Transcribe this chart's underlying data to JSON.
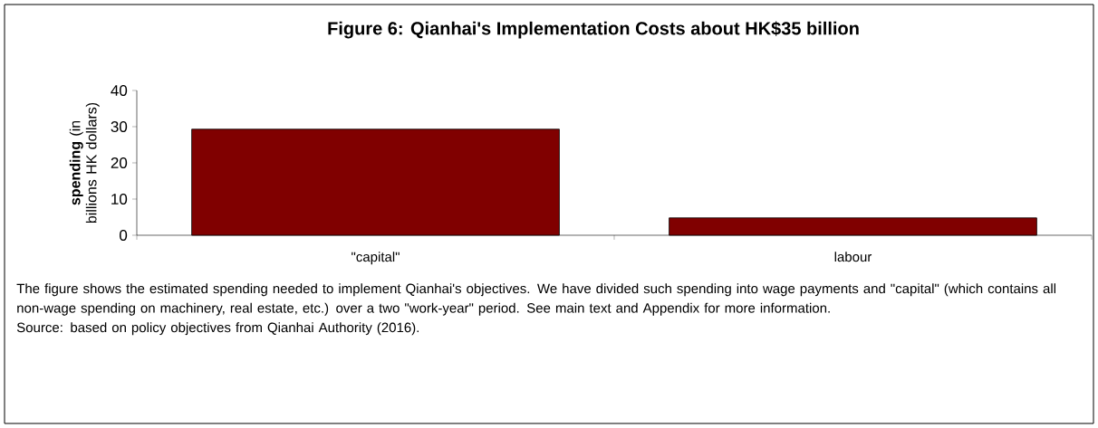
{
  "chart_data": {
    "type": "bar",
    "title": "Figure 6: Qianhai's Implementation Costs about HK$35 billion",
    "ylabel": "**spending** (in billions HK dollars)",
    "categories": [
      "\"capital\"",
      "labour"
    ],
    "values": [
      29.3,
      4.8
    ],
    "color": "#800000",
    "ylim": [
      0,
      40
    ],
    "yticks": [
      0,
      10,
      20,
      30,
      40
    ],
    "annotations": [
      "The figure shows the estimated spending needed to implement Qianhai's objectives. We have divided such spending into wage payments and \"capital\" (which contains all non-wage spending on machinery, real estate, etc.) over a two \"work-year\" period. See main text and Appendix for more information.",
      "Source: based on policy objectives from Qianhai Authority (2016)."
    ]
  }
}
